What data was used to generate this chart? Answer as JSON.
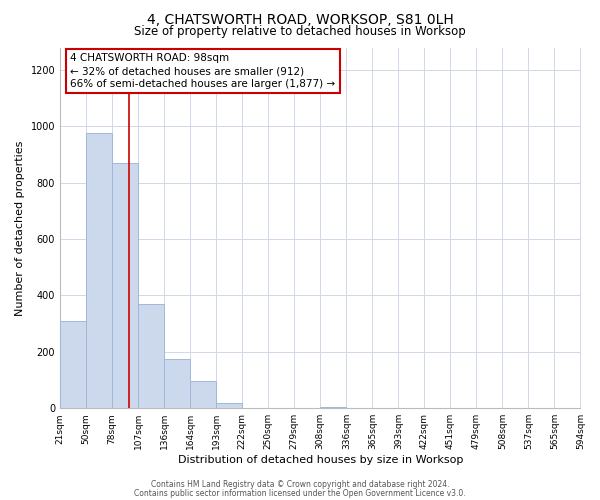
{
  "title": "4, CHATSWORTH ROAD, WORKSOP, S81 0LH",
  "subtitle": "Size of property relative to detached houses in Worksop",
  "xlabel": "Distribution of detached houses by size in Worksop",
  "ylabel": "Number of detached properties",
  "bar_values": [
    310,
    975,
    870,
    370,
    175,
    95,
    20,
    0,
    0,
    0,
    5,
    0,
    0,
    0,
    0,
    0,
    0,
    0,
    0,
    0
  ],
  "bin_labels": [
    "21sqm",
    "50sqm",
    "78sqm",
    "107sqm",
    "136sqm",
    "164sqm",
    "193sqm",
    "222sqm",
    "250sqm",
    "279sqm",
    "308sqm",
    "336sqm",
    "365sqm",
    "393sqm",
    "422sqm",
    "451sqm",
    "479sqm",
    "508sqm",
    "537sqm",
    "565sqm",
    "594sqm"
  ],
  "bar_color": "#ccd9ed",
  "bar_edge_color": "#a0b8d8",
  "vline_x": 98,
  "vline_color": "#cc0000",
  "annotation_line1": "4 CHATSWORTH ROAD: 98sqm",
  "annotation_line2": "← 32% of detached houses are smaller (912)",
  "annotation_line3": "66% of semi-detached houses are larger (1,877) →",
  "ylim": [
    0,
    1280
  ],
  "yticks": [
    0,
    200,
    400,
    600,
    800,
    1000,
    1200
  ],
  "footer_line1": "Contains HM Land Registry data © Crown copyright and database right 2024.",
  "footer_line2": "Contains public sector information licensed under the Open Government Licence v3.0.",
  "background_color": "#ffffff",
  "grid_color": "#d0d8e8",
  "title_fontsize": 10,
  "subtitle_fontsize": 8.5,
  "tick_fontsize": 6.5,
  "ylabel_fontsize": 8,
  "xlabel_fontsize": 8,
  "footer_fontsize": 5.5
}
